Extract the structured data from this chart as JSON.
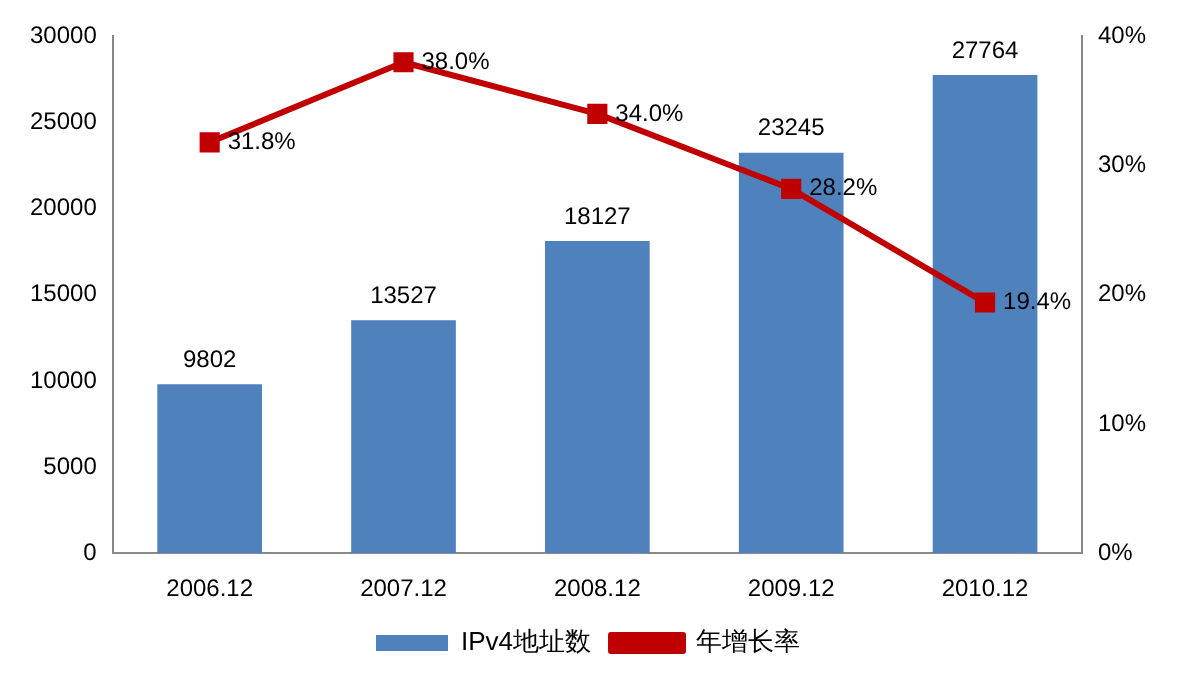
{
  "chart_data": {
    "type": "bar",
    "categories": [
      "2006.12",
      "2007.12",
      "2008.12",
      "2009.12",
      "2010.12"
    ],
    "series": [
      {
        "name": "IPv4地址数",
        "color": "#4f81bd",
        "values": [
          9802,
          13527,
          18127,
          23245,
          27764
        ],
        "value_labels": [
          "9802",
          "13527",
          "18127",
          "23245",
          "27764"
        ]
      },
      {
        "name": "年增长率",
        "type": "line",
        "axis": "y2",
        "color": "#c00000",
        "marker": "square",
        "line_style": "solid",
        "values": [
          31.8,
          38.0,
          34.0,
          28.2,
          19.4
        ],
        "value_labels": [
          "31.8%",
          "38.0%",
          "34.0%",
          "28.2%",
          "19.4%"
        ]
      }
    ],
    "ylim": [
      0,
      30000
    ],
    "yticks": [
      0,
      5000,
      10000,
      15000,
      20000,
      25000,
      30000
    ],
    "y2lim": [
      0,
      40
    ],
    "y2ticks": [
      {
        "value": 0,
        "label": "0%"
      },
      {
        "value": 10,
        "label": "10%"
      },
      {
        "value": 20,
        "label": "20%"
      },
      {
        "value": 30,
        "label": "30%"
      },
      {
        "value": 40,
        "label": "40%"
      }
    ],
    "grid": false,
    "legend": "bottom"
  }
}
